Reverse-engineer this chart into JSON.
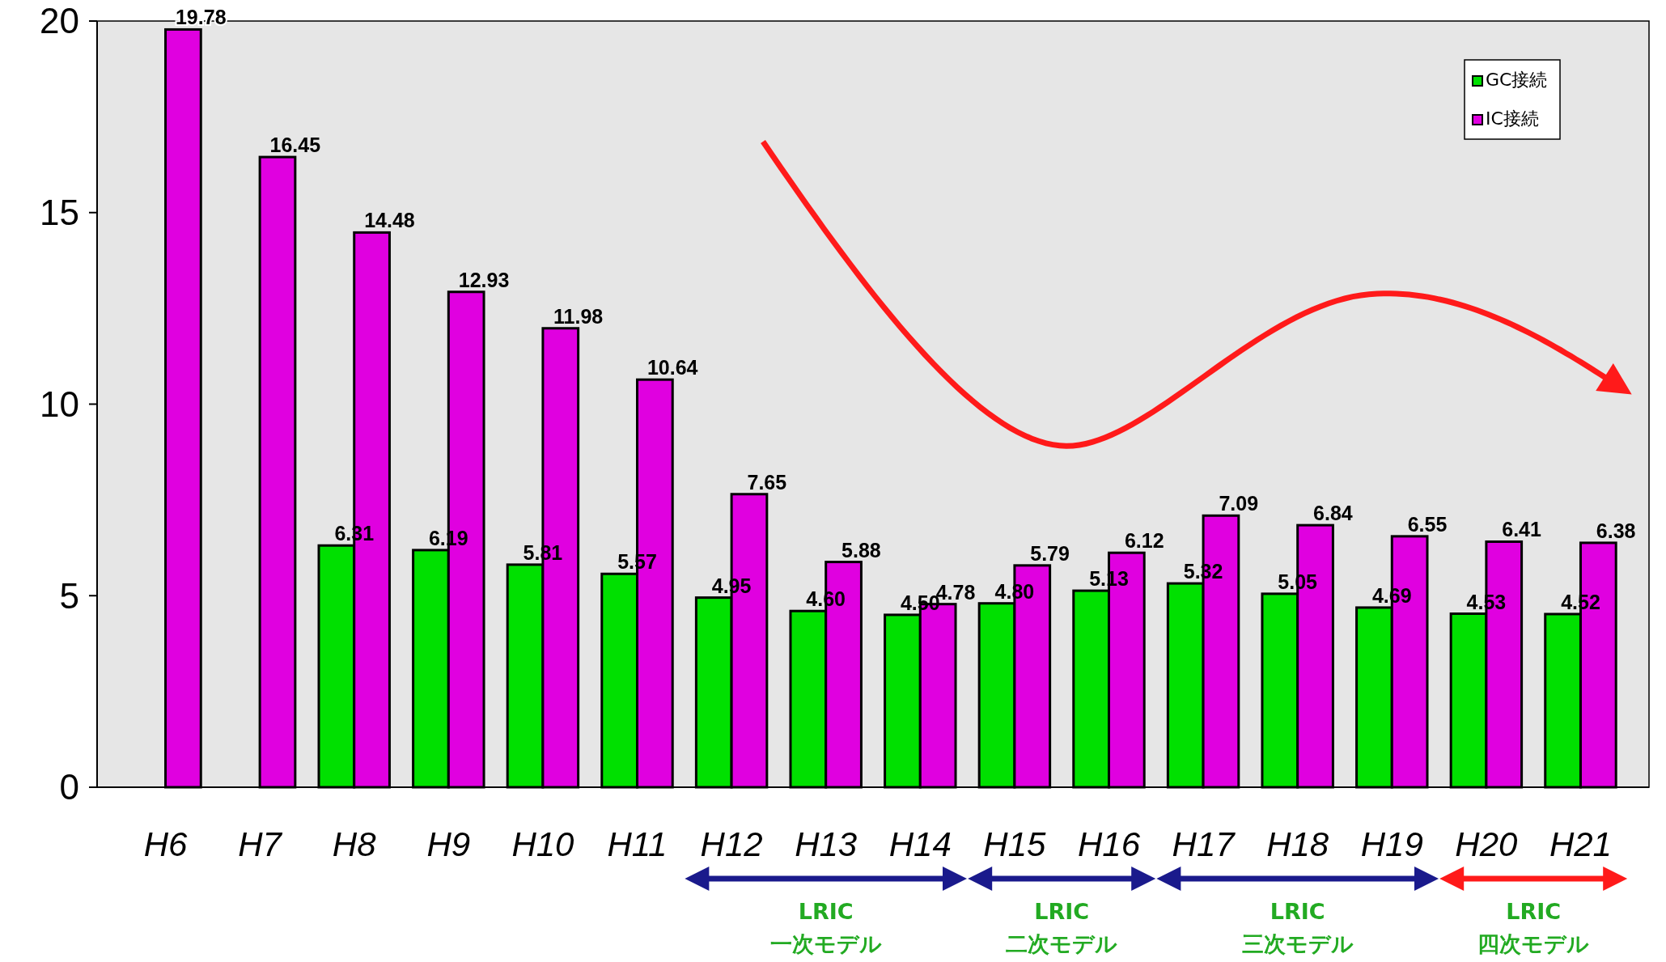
{
  "chart_data": {
    "type": "bar",
    "categories": [
      "H6",
      "H7",
      "H8",
      "H9",
      "H10",
      "H11",
      "H12",
      "H13",
      "H14",
      "H15",
      "H16",
      "H17",
      "H18",
      "H19",
      "H20",
      "H21"
    ],
    "series": [
      {
        "name": "GC接続",
        "color": "#00e000",
        "values": [
          null,
          null,
          6.31,
          6.19,
          5.81,
          5.57,
          4.95,
          4.6,
          4.5,
          4.8,
          5.13,
          5.32,
          5.05,
          4.69,
          4.53,
          4.52
        ],
        "value_labels": [
          null,
          null,
          "6.31",
          "6.19",
          "5.81",
          "5.57",
          "4.95",
          "4.60",
          "4.50",
          "4.80",
          "5.13",
          "5.32",
          "5.05",
          "4.69",
          "4.53",
          "4.52"
        ]
      },
      {
        "name": "IC接続",
        "color": "#e000e0",
        "values": [
          19.78,
          16.45,
          14.48,
          12.93,
          11.98,
          10.64,
          7.65,
          5.88,
          4.78,
          5.79,
          6.12,
          7.09,
          6.84,
          6.55,
          6.41,
          6.38
        ],
        "value_labels": [
          "19.78",
          "16.45",
          "14.48",
          "12.93",
          "11.98",
          "10.64",
          "7.65",
          "5.88",
          "4.78",
          "5.79",
          "6.12",
          "7.09",
          "6.84",
          "6.55",
          "6.41",
          "6.38"
        ]
      }
    ],
    "ylim": [
      0,
      20
    ],
    "yticks": [
      0,
      5,
      10,
      15,
      20
    ],
    "grid": false,
    "legend": "top right",
    "annotations": [
      "LRIC\n一次モデル",
      "LRIC\n二次モデル",
      "LRIC\n三次モデル",
      "LRIC\n四次モデル"
    ]
  }
}
